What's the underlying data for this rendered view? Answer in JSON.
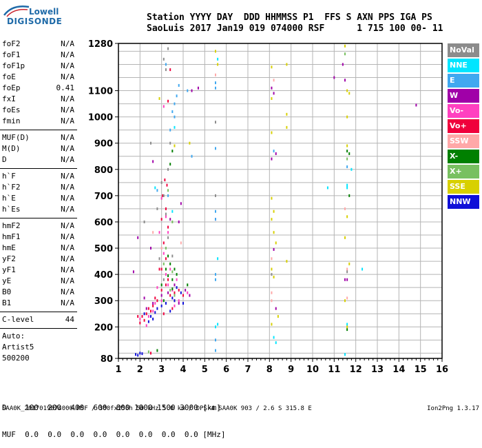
{
  "logo": {
    "line1": "Lowell",
    "line2": "DIGISONDE"
  },
  "header": {
    "line1": "Station YYYY DAY  DDD HHMMSS P1  FFS S AXN PPS IGA PS",
    "line2": "SaoLuis 2017 Jan19 019 074000 RSF      1 715 100 00- 11"
  },
  "params": [
    [
      {
        "name": "foF2",
        "value": "N/A"
      },
      {
        "name": "foF1",
        "value": "N/A"
      },
      {
        "name": "foF1p",
        "value": "N/A"
      },
      {
        "name": "foE",
        "value": "N/A"
      },
      {
        "name": "foEp",
        "value": "0.41"
      },
      {
        "name": "fxI",
        "value": "N/A"
      },
      {
        "name": "foEs",
        "value": "N/A"
      },
      {
        "name": "fmin",
        "value": "N/A"
      }
    ],
    [
      {
        "name": "MUF(D)",
        "value": "N/A"
      },
      {
        "name": "M(D)",
        "value": "N/A"
      },
      {
        "name": "D",
        "value": "N/A"
      }
    ],
    [
      {
        "name": "h`F",
        "value": "N/A"
      },
      {
        "name": "h`F2",
        "value": "N/A"
      },
      {
        "name": "h`E",
        "value": "N/A"
      },
      {
        "name": "h`Es",
        "value": "N/A"
      }
    ],
    [
      {
        "name": "hmF2",
        "value": "N/A"
      },
      {
        "name": "hmF1",
        "value": "N/A"
      },
      {
        "name": "hmE",
        "value": "N/A"
      },
      {
        "name": "yF2",
        "value": "N/A"
      },
      {
        "name": "yF1",
        "value": "N/A"
      },
      {
        "name": "yE",
        "value": "N/A"
      },
      {
        "name": "B0",
        "value": "N/A"
      },
      {
        "name": "B1",
        "value": "N/A"
      }
    ],
    [
      {
        "name": "C-level",
        "value": "44"
      }
    ]
  ],
  "auto": [
    "Auto:",
    "Artist5",
    "500200"
  ],
  "legend": [
    {
      "label": "NoVal",
      "color": "#8c8c8c"
    },
    {
      "label": "NNE",
      "color": "#00e5ff"
    },
    {
      "label": "E",
      "color": "#40a8f0"
    },
    {
      "label": "W",
      "color": "#a000a8"
    },
    {
      "label": "Vo-",
      "color": "#ff40c0"
    },
    {
      "label": "Vo+",
      "color": "#f0003c"
    },
    {
      "label": "SSW",
      "color": "#ffa8a8"
    },
    {
      "label": "X-",
      "color": "#008000"
    },
    {
      "label": "X+",
      "color": "#78c060"
    },
    {
      "label": "SSE",
      "color": "#d8d000"
    },
    {
      "label": "NNW",
      "color": "#1010d8"
    }
  ],
  "dtable": {
    "line1": "D    100  200  400  600  800 1000 1500 3000 [km]",
    "line2": "MUF  0.0  0.0  0.0  0.0  0.0  0.0  0.0  0.0 [MHz]"
  },
  "footer": "SAA0K_2017019074000.RSF / 300fx256h 50 kHz 5.0 km / DPS-4 SAA0K 903 / 2.6 S 315.8 E",
  "version": "Ion2Png 1.3.17",
  "chart_data": {
    "type": "scatter",
    "x_axis": {
      "range": [
        1,
        16
      ],
      "ticks": [
        1,
        2,
        3,
        4,
        5,
        6,
        7,
        8,
        9,
        10,
        11,
        12,
        13,
        14,
        15,
        16
      ]
    },
    "y_axis": {
      "range": [
        80,
        1280
      ],
      "ticks": [
        80,
        200,
        300,
        400,
        500,
        600,
        700,
        800,
        900,
        1000,
        1100,
        1280
      ]
    },
    "grid": true,
    "series": [
      {
        "color": "#f0003c",
        "points": [
          [
            2.1,
            240
          ],
          [
            2.3,
            250
          ],
          [
            2.5,
            260
          ],
          [
            2.8,
            300
          ],
          [
            3.0,
            340
          ],
          [
            3.2,
            360
          ],
          [
            3.3,
            380
          ],
          [
            3.4,
            320
          ],
          [
            3.6,
            300
          ],
          [
            3.8,
            340
          ],
          [
            2.2,
            225
          ],
          [
            2.6,
            280
          ],
          [
            3.1,
            250
          ],
          [
            3.5,
            270
          ],
          [
            2.9,
            420
          ],
          [
            3.2,
            460
          ],
          [
            3.1,
            520
          ],
          [
            3.3,
            580
          ],
          [
            3.0,
            610
          ],
          [
            3.2,
            650
          ],
          [
            1.9,
            240
          ],
          [
            2.4,
            270
          ],
          [
            2.0,
            215
          ],
          [
            3.6,
            330
          ],
          [
            4.0,
            320
          ],
          [
            2.7,
            310
          ],
          [
            3.05,
            700
          ],
          [
            3.25,
            740
          ],
          [
            3.15,
            760
          ],
          [
            3.3,
            1060
          ],
          [
            3.4,
            1180
          ],
          [
            2.5,
            100
          ],
          [
            3.0,
            420
          ]
        ]
      },
      {
        "color": "#ff40c0",
        "points": [
          [
            2.0,
            230
          ],
          [
            2.4,
            240
          ],
          [
            2.7,
            290
          ],
          [
            3.0,
            300
          ],
          [
            3.3,
            360
          ],
          [
            3.5,
            340
          ],
          [
            3.8,
            300
          ],
          [
            3.6,
            280
          ],
          [
            2.8,
            350
          ],
          [
            3.2,
            400
          ],
          [
            2.6,
            260
          ],
          [
            3.4,
            420
          ],
          [
            3.1,
            480
          ],
          [
            2.9,
            560
          ],
          [
            3.2,
            620
          ],
          [
            4.2,
            330
          ],
          [
            3.7,
            380
          ],
          [
            2.3,
            205
          ],
          [
            3.3,
            560
          ],
          [
            3.0,
            690
          ],
          [
            3.1,
            1040
          ]
        ]
      },
      {
        "color": "#1010d8",
        "points": [
          [
            2.2,
            250
          ],
          [
            2.5,
            240
          ],
          [
            2.8,
            270
          ],
          [
            3.0,
            280
          ],
          [
            3.2,
            290
          ],
          [
            3.4,
            260
          ],
          [
            3.6,
            300
          ],
          [
            3.9,
            330
          ],
          [
            2.6,
            230
          ],
          [
            4.0,
            290
          ],
          [
            1.8,
            95
          ],
          [
            2.0,
            100
          ],
          [
            3.5,
            310
          ],
          [
            2.7,
            255
          ],
          [
            3.7,
            350
          ],
          [
            2.4,
            220
          ],
          [
            1.9,
            92
          ],
          [
            2.1,
            98
          ]
        ]
      },
      {
        "color": "#a000a8",
        "points": [
          [
            2.3,
            270
          ],
          [
            2.6,
            290
          ],
          [
            3.0,
            320
          ],
          [
            3.3,
            330
          ],
          [
            3.6,
            360
          ],
          [
            4.1,
            340
          ],
          [
            2.2,
            310
          ],
          [
            3.8,
            290
          ],
          [
            4.3,
            320
          ],
          [
            1.7,
            410
          ],
          [
            1.9,
            540
          ],
          [
            2.5,
            500
          ],
          [
            3.4,
            610
          ],
          [
            3.9,
            670
          ],
          [
            2.6,
            830
          ],
          [
            4.7,
            1110
          ],
          [
            4.4,
            1100
          ],
          [
            3.8,
            600
          ],
          [
            11.0,
            1150
          ],
          [
            11.4,
            1200
          ],
          [
            14.8,
            1045
          ],
          [
            8.1,
            1110
          ],
          [
            8.2,
            1090
          ],
          [
            11.5,
            1140
          ],
          [
            8.3,
            860
          ],
          [
            8.1,
            840
          ],
          [
            5.5,
            610
          ],
          [
            8.2,
            495
          ],
          [
            8.3,
            270
          ],
          [
            11.6,
            380
          ],
          [
            11.5,
            380
          ]
        ]
      },
      {
        "color": "#008000",
        "points": [
          [
            3.2,
            420
          ],
          [
            3.4,
            440
          ],
          [
            3.3,
            470
          ],
          [
            3.5,
            380
          ],
          [
            3.7,
            400
          ],
          [
            3.0,
            360
          ],
          [
            3.1,
            300
          ],
          [
            3.6,
            420
          ],
          [
            4.2,
            360
          ],
          [
            3.4,
            820
          ],
          [
            3.5,
            870
          ],
          [
            11.7,
            860
          ],
          [
            11.6,
            870
          ],
          [
            11.7,
            700
          ],
          [
            11.6,
            190
          ],
          [
            2.8,
            110
          ],
          [
            3.3,
            395
          ],
          [
            3.5,
            345
          ]
        ]
      },
      {
        "color": "#78c060",
        "points": [
          [
            3.1,
            440
          ],
          [
            3.5,
            410
          ],
          [
            3.2,
            500
          ],
          [
            3.4,
            340
          ],
          [
            3.6,
            320
          ],
          [
            3.3,
            720
          ],
          [
            3.5,
            600
          ],
          [
            11.6,
            840
          ],
          [
            11.5,
            1240
          ],
          [
            2.4,
            105
          ]
        ]
      },
      {
        "color": "#40a8f0",
        "points": [
          [
            3.4,
            950
          ],
          [
            3.6,
            1000
          ],
          [
            3.5,
            1020
          ],
          [
            3.6,
            1050
          ],
          [
            3.7,
            1080
          ],
          [
            3.8,
            1120
          ],
          [
            4.2,
            1100
          ],
          [
            4.4,
            850
          ],
          [
            3.3,
            700
          ],
          [
            5.5,
            1130
          ],
          [
            5.5,
            1110
          ],
          [
            5.5,
            880
          ],
          [
            5.5,
            640
          ],
          [
            5.5,
            610
          ],
          [
            5.5,
            400
          ],
          [
            5.5,
            380
          ],
          [
            5.5,
            150
          ],
          [
            5.5,
            110
          ],
          [
            8.2,
            870
          ],
          [
            11.6,
            810
          ],
          [
            3.2,
            1200
          ],
          [
            2.8,
            720
          ]
        ]
      },
      {
        "color": "#00e5ff",
        "points": [
          [
            3.5,
            640
          ],
          [
            2.7,
            730
          ],
          [
            3.6,
            960
          ],
          [
            5.6,
            460
          ],
          [
            5.6,
            210
          ],
          [
            5.5,
            200
          ],
          [
            10.7,
            730
          ],
          [
            11.6,
            730
          ],
          [
            11.6,
            740
          ],
          [
            12.3,
            420
          ],
          [
            11.6,
            210
          ],
          [
            11.5,
            95
          ],
          [
            8.2,
            160
          ],
          [
            8.3,
            140
          ],
          [
            5.6,
            1220
          ],
          [
            11.8,
            800
          ]
        ]
      },
      {
        "color": "#d8d000",
        "points": [
          [
            5.5,
            1250
          ],
          [
            5.6,
            1200
          ],
          [
            8.1,
            1190
          ],
          [
            8.8,
            1200
          ],
          [
            8.1,
            940
          ],
          [
            8.8,
            960
          ],
          [
            8.1,
            690
          ],
          [
            8.2,
            640
          ],
          [
            8.1,
            610
          ],
          [
            8.2,
            560
          ],
          [
            8.3,
            520
          ],
          [
            8.8,
            450
          ],
          [
            8.1,
            420
          ],
          [
            8.2,
            390
          ],
          [
            8.1,
            210
          ],
          [
            8.4,
            240
          ],
          [
            11.5,
            1270
          ],
          [
            11.6,
            1100
          ],
          [
            11.7,
            1090
          ],
          [
            11.6,
            890
          ],
          [
            11.5,
            540
          ],
          [
            11.6,
            620
          ],
          [
            11.7,
            440
          ],
          [
            11.5,
            300
          ],
          [
            11.6,
            200
          ],
          [
            8.8,
            1010
          ],
          [
            3.6,
            890
          ],
          [
            4.3,
            900
          ],
          [
            2.9,
            1070
          ],
          [
            8.1,
            1070
          ],
          [
            11.6,
            1000
          ]
        ]
      },
      {
        "color": "#ffa8a8",
        "points": [
          [
            8.1,
            460
          ],
          [
            8.1,
            300
          ],
          [
            11.6,
            310
          ],
          [
            8.1,
            330
          ],
          [
            11.6,
            420
          ],
          [
            3.0,
            500
          ],
          [
            2.6,
            560
          ],
          [
            3.9,
            520
          ],
          [
            11.5,
            650
          ],
          [
            8.2,
            1140
          ],
          [
            5.5,
            1160
          ]
        ]
      },
      {
        "color": "#8c8c8c",
        "points": [
          [
            3.3,
            540
          ],
          [
            3.1,
            380
          ],
          [
            2.9,
            460
          ],
          [
            3.5,
            470
          ],
          [
            3.2,
            630
          ],
          [
            3.0,
            750
          ],
          [
            3.1,
            700
          ],
          [
            2.8,
            650
          ],
          [
            3.3,
            800
          ],
          [
            3.4,
            900
          ],
          [
            3.2,
            1180
          ],
          [
            3.1,
            1220
          ],
          [
            3.3,
            1260
          ],
          [
            5.5,
            700
          ],
          [
            5.5,
            980
          ],
          [
            8.1,
            400
          ],
          [
            11.6,
            410
          ],
          [
            2.5,
            900
          ],
          [
            2.2,
            600
          ]
        ]
      }
    ]
  }
}
